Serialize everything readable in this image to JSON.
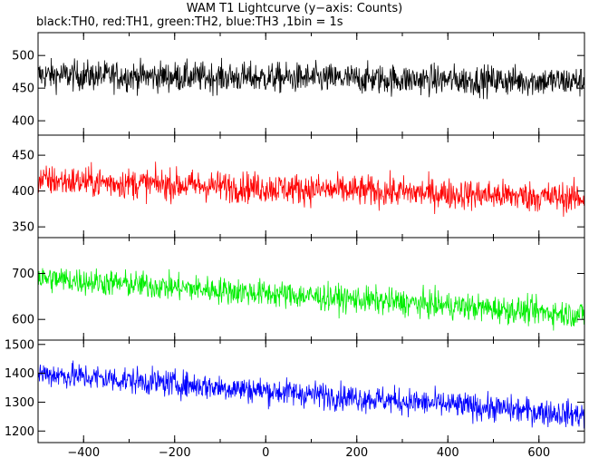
{
  "header": {
    "title": "WAM T1 Lightcurve (y−axis: Counts)",
    "subtitle": "black:TH0, red:TH1, green:TH2, blue:TH3 ,1bin = 1s"
  },
  "chart_data": {
    "type": "line",
    "x_ticks": [
      -400,
      -200,
      0,
      200,
      400,
      600
    ],
    "xlim": [
      -500,
      700
    ],
    "bin_seconds": 1,
    "panels": [
      {
        "name": "TH0",
        "color": "#000000",
        "ylim": [
          378,
          535
        ],
        "y_ticks": [
          400,
          450,
          500
        ],
        "start_level": 470,
        "end_level": 460,
        "noise_amplitude": 30
      },
      {
        "name": "TH1",
        "color": "#ff0000",
        "ylim": [
          335,
          478
        ],
        "y_ticks": [
          350,
          400,
          450
        ],
        "start_level": 415,
        "end_level": 390,
        "noise_amplitude": 28
      },
      {
        "name": "TH2",
        "color": "#00ee00",
        "ylim": [
          555,
          778
        ],
        "y_ticks": [
          600,
          700
        ],
        "start_level": 690,
        "end_level": 610,
        "noise_amplitude": 38
      },
      {
        "name": "TH3",
        "color": "#0000ff",
        "ylim": [
          1160,
          1515
        ],
        "y_ticks": [
          1200,
          1300,
          1400,
          1500
        ],
        "start_level": 1400,
        "end_level": 1255,
        "noise_amplitude": 60
      }
    ]
  }
}
